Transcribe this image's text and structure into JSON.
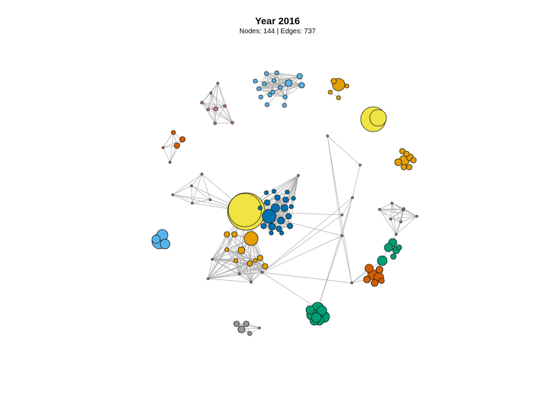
{
  "title": "Year 2016",
  "subtitle": "Nodes: 144 | Edges: 737",
  "colors": {
    "yellow": "#F0E442",
    "blue": "#0072B2",
    "sky": "#56B4E9",
    "orange": "#E69F00",
    "vermillion": "#D55E00",
    "green": "#009E73",
    "purple": "#CC79A7",
    "grey": "#999999",
    "edge": "#aaaaaa"
  }
}
